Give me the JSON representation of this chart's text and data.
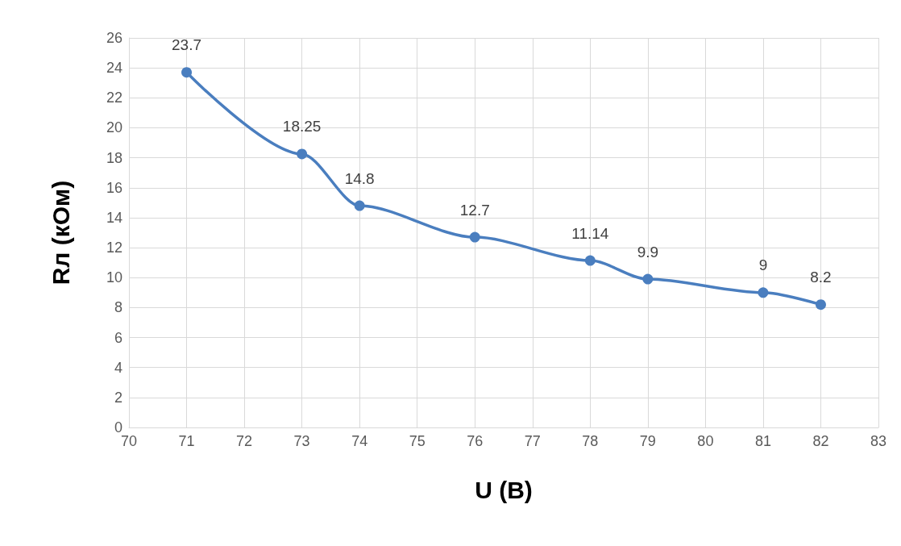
{
  "chart_data": {
    "type": "line",
    "xlabel": "U (В)",
    "ylabel": "Rл (кОм)",
    "x": [
      71,
      73,
      74,
      76,
      78,
      79,
      81,
      82
    ],
    "series": [
      {
        "color": "#4a7ebf",
        "values": [
          23.7,
          18.25,
          14.8,
          12.7,
          11.14,
          9.9,
          9,
          8.2
        ]
      }
    ],
    "xlim": [
      70,
      83
    ],
    "xticks": [
      70,
      71,
      72,
      73,
      74,
      75,
      76,
      77,
      78,
      79,
      80,
      81,
      82,
      83
    ],
    "ylim": [
      0,
      26
    ],
    "yticks": [
      0,
      2,
      4,
      6,
      8,
      10,
      12,
      14,
      16,
      18,
      20,
      22,
      24,
      26
    ],
    "grid": true,
    "marker": "circle",
    "line_style": "solid",
    "data_labels": true
  }
}
